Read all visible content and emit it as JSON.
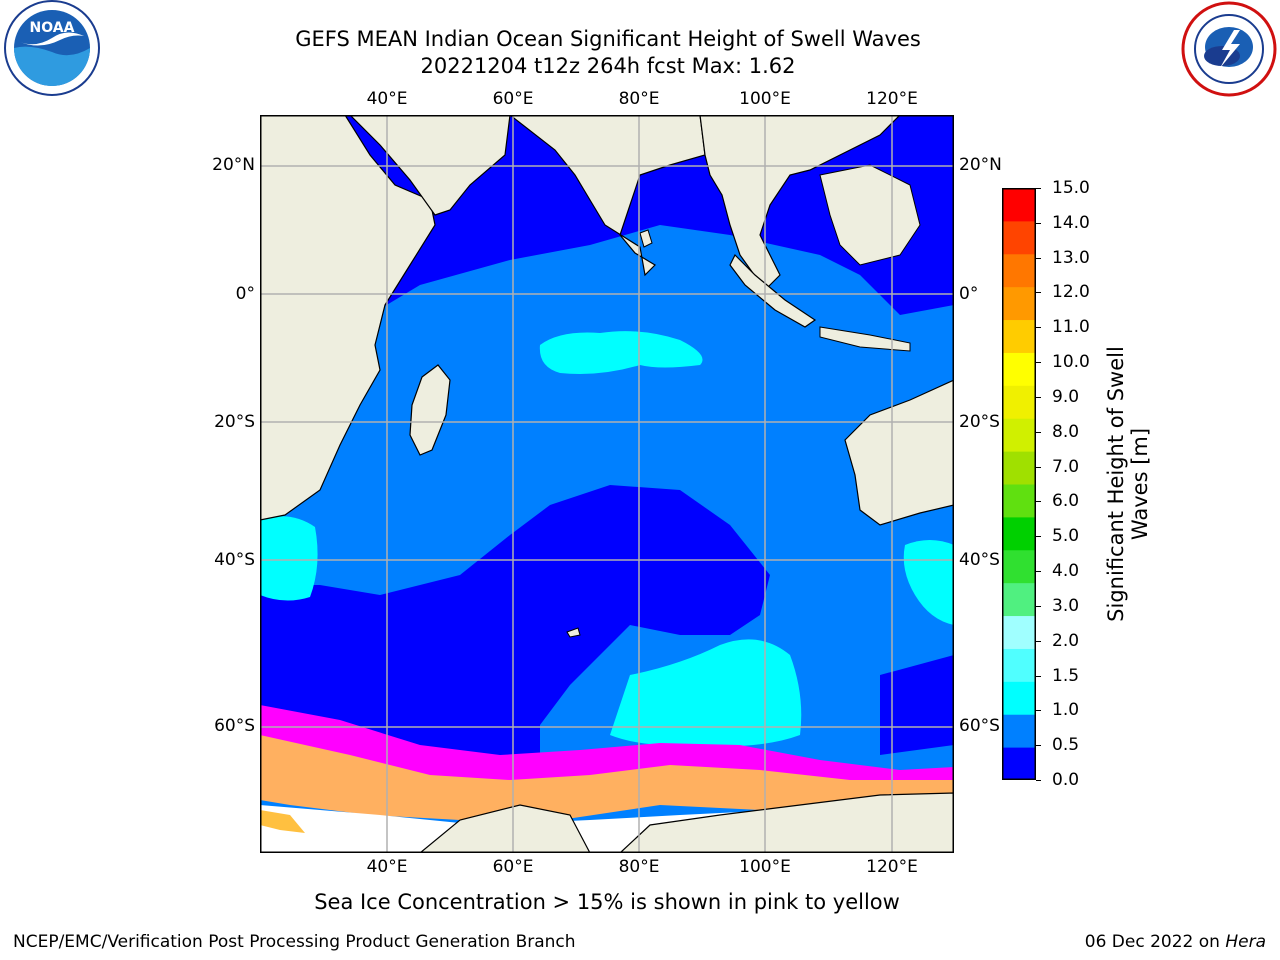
{
  "title": {
    "line1": "GEFS MEAN Indian Ocean Significant Height of Swell Waves",
    "line2": "20221204 t12z 264h fcst   Max: 1.62"
  },
  "map": {
    "lon_ticks": [
      "40°E",
      "60°E",
      "80°E",
      "100°E",
      "120°E"
    ],
    "lat_ticks": [
      "20°N",
      "0°",
      "20°S",
      "40°S",
      "60°S"
    ],
    "colors": {
      "land": "#eeeedf",
      "ocean_low": "#0000ff",
      "ocean_mid": "#0080ff",
      "ocean_high": "#00ffff",
      "grid": "#b0b0b0",
      "ice": "#ff00ff"
    }
  },
  "colorbar": {
    "label": "Significant Height of Swell Waves [m]",
    "ticks": [
      "15.0",
      "14.0",
      "13.0",
      "12.0",
      "11.0",
      "10.0",
      "9.0",
      "8.0",
      "7.0",
      "6.0",
      "5.0",
      "4.0",
      "3.0",
      "2.0",
      "1.5",
      "1.0",
      "0.5",
      "0.0"
    ],
    "colors": [
      "#0000ff",
      "#0080ff",
      "#00ffff",
      "#50ffff",
      "#a0ffff",
      "#50f080",
      "#30e030",
      "#00d000",
      "#60e010",
      "#a0e000",
      "#d0f000",
      "#f0f000",
      "#ffff00",
      "#ffcc00",
      "#ff9900",
      "#ff7700",
      "#ff4400",
      "#ff0000"
    ]
  },
  "logos": {
    "noaa_text": "NOAA",
    "noaa_ring_text": "NATIONAL OCEANIC AND ATMOSPHERIC ADMINISTRATION · U.S. DEPARTMENT OF COMMERCE",
    "nws_ring_text": "NATIONAL WEATHER SERVICE"
  },
  "note": "Sea Ice Concentration > 15% is shown in pink to yellow",
  "footer": {
    "left": "NCEP/EMC/Verification Post Processing Product Generation Branch",
    "right_prefix": "06 Dec 2022 on ",
    "right_host": "Hera"
  }
}
